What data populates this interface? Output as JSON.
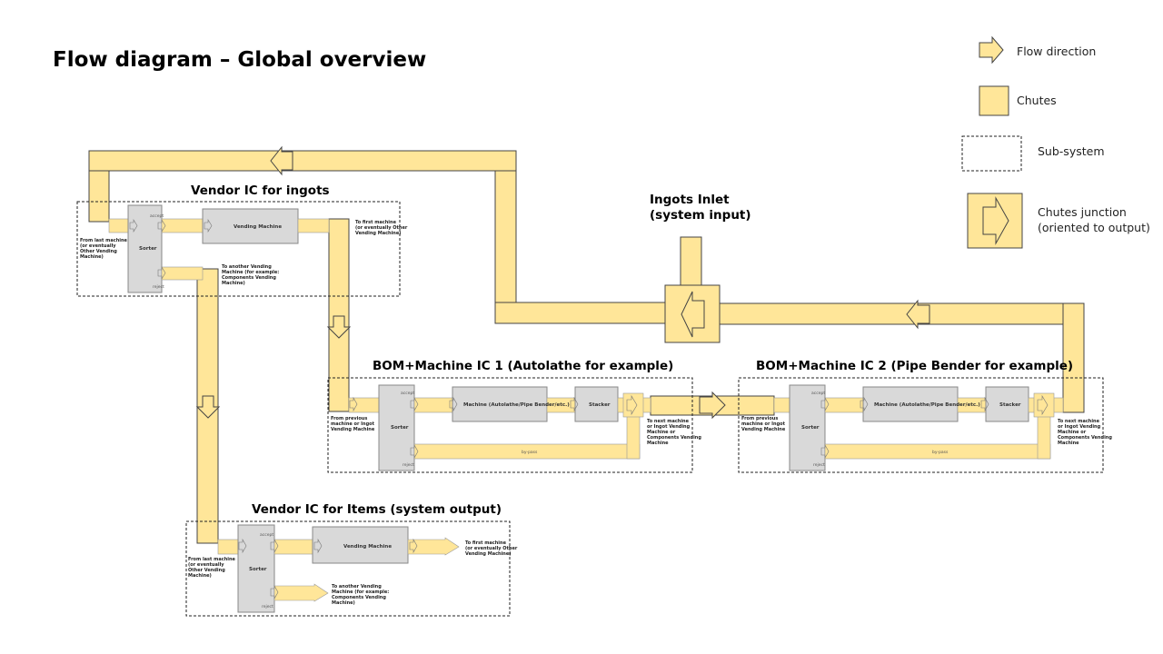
{
  "title": "Flow diagram – Global overview",
  "legend": {
    "flow_direction": "Flow direction",
    "chutes": "Chutes",
    "sub_system": "Sub-system",
    "junction_line1": "Chutes junction",
    "junction_line2": "(oriented to output)"
  },
  "ingots_inlet": {
    "line1": "Ingots Inlet",
    "line2": "(system input)"
  },
  "vendor_ingots": {
    "title": "Vendor IC for ingots",
    "from_line1": "From last machine",
    "from_line2": "(or eventually",
    "from_line3": "Other Vending",
    "from_line4": "Machine)",
    "sorter": "Sorter",
    "accept": "accept",
    "reject": "reject",
    "machine": "Vending Machine",
    "to_first_line1": "To first machine",
    "to_first_line2": "(or eventually Other",
    "to_first_line3": "Vending Machine)",
    "to_other_line1": "To another Vending",
    "to_other_line2": "Machine (for example:",
    "to_other_line3": "Components Vending",
    "to_other_line4": "Machine)"
  },
  "bom1": {
    "title": "BOM+Machine IC 1 (Autolathe for example)",
    "from_line1": "From previous",
    "from_line2": "machine or Ingot",
    "from_line3": "Vending Machine",
    "sorter": "Sorter",
    "accept": "accept",
    "reject": "reject",
    "machine": "Machine (Autolathe/Pipe Bender/etc.)",
    "stacker": "Stacker",
    "bypass": "by-pass",
    "to_next_line1": "To next machine",
    "to_next_line2": "or Ingot Vending",
    "to_next_line3": "Machine or",
    "to_next_line4": "Components Vending",
    "to_next_line5": "Machine"
  },
  "bom2": {
    "title": "BOM+Machine IC 2 (Pipe Bender for example)",
    "from_line1": "From previous",
    "from_line2": "machine or Ingot",
    "from_line3": "Vending Machine",
    "sorter": "Sorter",
    "accept": "accept",
    "reject": "reject",
    "machine": "Machine (Autolathe/Pipe Bender/etc.)",
    "stacker": "Stacker",
    "bypass": "by-pass",
    "to_next_line1": "To next machine",
    "to_next_line2": "or Ingot Vending",
    "to_next_line3": "Machine or",
    "to_next_line4": "Components Vending",
    "to_next_line5": "Machine"
  },
  "vendor_items": {
    "title": "Vendor IC for Items (system output)",
    "from_line1": "From last machine",
    "from_line2": "(or eventually",
    "from_line3": "Other Vending",
    "from_line4": "Machine)",
    "sorter": "Sorter",
    "accept": "accept",
    "reject": "reject",
    "machine": "Vending Machine",
    "to_first_line1": "To first machine",
    "to_first_line2": "(or eventually Other",
    "to_first_line3": "Vending Machine)",
    "to_other_line1": "To another Vending",
    "to_other_line2": "Machine (for example:",
    "to_other_line3": "Components Vending",
    "to_other_line4": "Machine)"
  },
  "colors": {
    "chute": "#ffe699",
    "machine_box": "#d9d9d9",
    "outline": "#444444"
  }
}
